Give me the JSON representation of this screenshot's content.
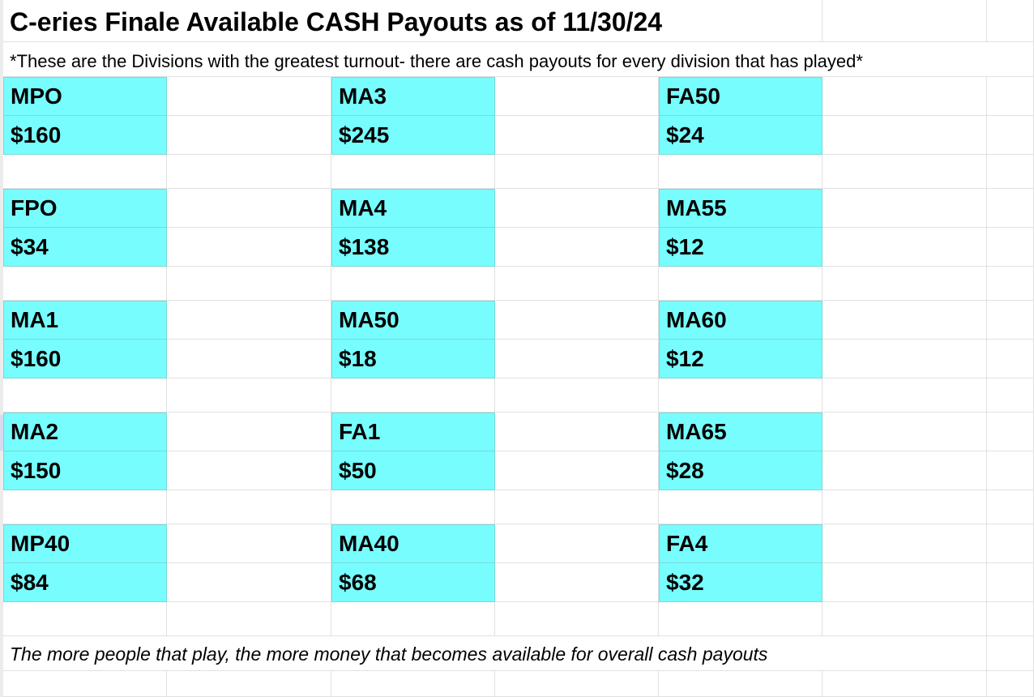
{
  "title": "C-eries Finale Available CASH Payouts as of 11/30/24",
  "subtitle": "*These are the Divisions with the greatest turnout- there are cash payouts for every division that has played*",
  "footer": "The more people that play, the more money that becomes available for overall cash payouts",
  "colors": {
    "cell_highlight": "#77fdfd",
    "gridline": "#e1e1e1"
  },
  "divisions": [
    {
      "name": "MPO",
      "amount": "$160"
    },
    {
      "name": "MA3",
      "amount": "$245"
    },
    {
      "name": "FA50",
      "amount": "$24"
    },
    {
      "name": "FPO",
      "amount": "$34"
    },
    {
      "name": "MA4",
      "amount": "$138"
    },
    {
      "name": "MA55",
      "amount": "$12"
    },
    {
      "name": "MA1",
      "amount": "$160"
    },
    {
      "name": "MA50",
      "amount": "$18"
    },
    {
      "name": "MA60",
      "amount": "$12"
    },
    {
      "name": "MA2",
      "amount": "$150"
    },
    {
      "name": "FA1",
      "amount": "$50"
    },
    {
      "name": "MA65",
      "amount": "$28"
    },
    {
      "name": "MP40",
      "amount": "$84"
    },
    {
      "name": "MA40",
      "amount": "$68"
    },
    {
      "name": "FA4",
      "amount": "$32"
    }
  ]
}
